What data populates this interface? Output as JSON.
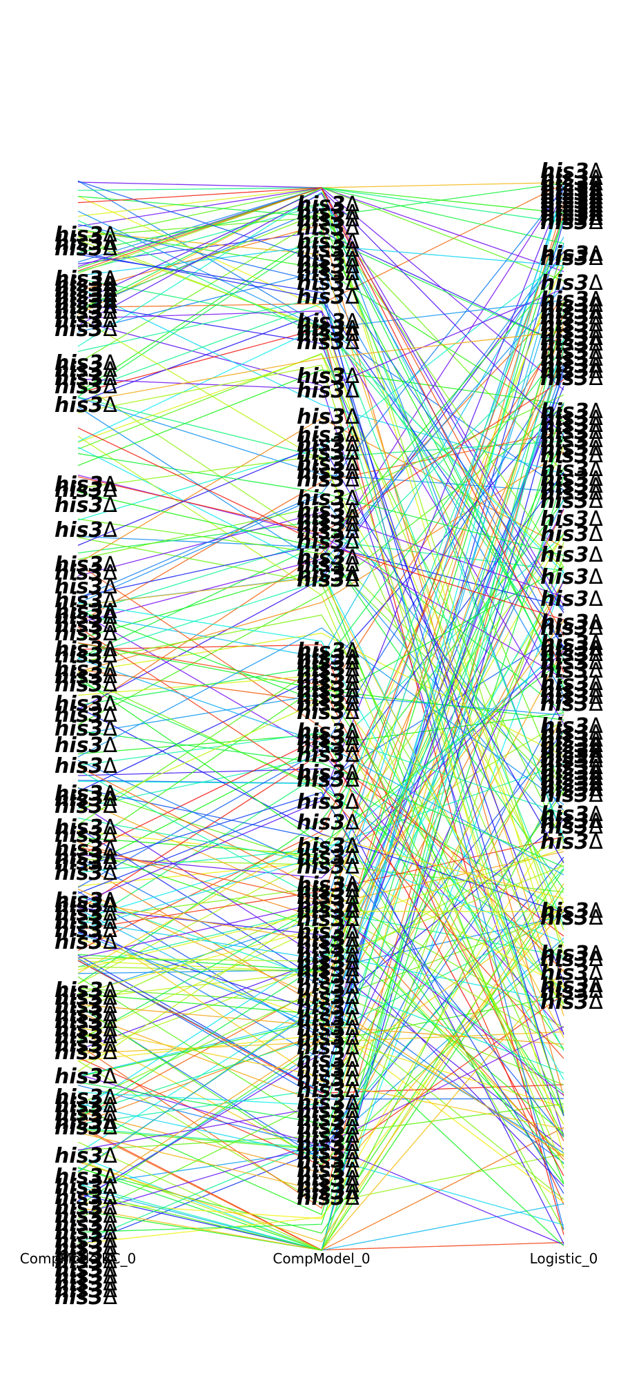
{
  "chart_data": {
    "type": "parallel-coordinates",
    "columns": [
      "CompModelBC_0",
      "CompModel_0",
      "Logistic_0"
    ],
    "label_text": "his3Δ",
    "label_gene": "his3",
    "label_suffix": "Δ",
    "colormap": "rainbow",
    "grid": false,
    "labels_compmodelbc": [
      350,
      362,
      370,
      414,
      422,
      430,
      438,
      446,
      454,
      462,
      474,
      487,
      536,
      546,
      558,
      570,
      597,
      712,
      720,
      742,
      778,
      828,
      840,
      860,
      880,
      896,
      904,
      916,
      928,
      951,
      960,
      980,
      990,
      1002,
      1030,
      1046,
      1066,
      1090,
      1120,
      1160,
      1168,
      1178,
      1209,
      1220,
      1240,
      1252,
      1260,
      1275,
      1315,
      1322,
      1334,
      1346,
      1358,
      1375,
      1445,
      1456,
      1468,
      1480,
      1490,
      1502,
      1512,
      1524,
      1535,
      1570,
      1600,
      1612,
      1624,
      1636,
      1644,
      1685,
      1715,
      1730,
      1745,
      1760,
      1772,
      1784,
      1796,
      1808,
      1818,
      1828,
      1838,
      1850,
      1860,
      1870,
      1880,
      1890
    ],
    "labels_compmodel": [
      306,
      318,
      328,
      340,
      360,
      372,
      386,
      396,
      406,
      420,
      440,
      476,
      486,
      494,
      506,
      555,
      576,
      614,
      640,
      654,
      666,
      682,
      694,
      705,
      732,
      750,
      760,
      770,
      780,
      795,
      818,
      828,
      842,
      850,
      953,
      963,
      970,
      980,
      990,
      1000,
      1010,
      1020,
      1030,
      1042,
      1070,
      1080,
      1090,
      1104,
      1130,
      1140,
      1172,
      1202,
      1236,
      1252,
      1266,
      1292,
      1300,
      1310,
      1322,
      1330,
      1342,
      1360,
      1372,
      1382,
      1395,
      1405,
      1415,
      1425,
      1440,
      1455,
      1470,
      1486,
      1500,
      1514,
      1528,
      1546,
      1560,
      1574,
      1590,
      1608,
      1620,
      1632,
      1644,
      1656,
      1668,
      1680,
      1692,
      1706,
      1718,
      1728,
      1738,
      1746
    ],
    "labels_logistic": [
      258,
      268,
      276,
      284,
      290,
      296,
      302,
      308,
      314,
      320,
      326,
      332,
      378,
      384,
      420,
      444,
      452,
      462,
      470,
      480,
      490,
      500,
      508,
      520,
      530,
      540,
      548,
      558,
      606,
      616,
      626,
      636,
      648,
      660,
      670,
      690,
      704,
      714,
      724,
      736,
      762,
      784,
      814,
      846,
      878,
      912,
      920,
      942,
      950,
      958,
      970,
      982,
      1000,
      1010,
      1020,
      1030,
      1062,
      1072,
      1082,
      1090,
      1098,
      1106,
      1112,
      1122,
      1130,
      1138,
      1146,
      1154,
      1162,
      1190,
      1200,
      1208,
      1230,
      1330,
      1340,
      1392,
      1400,
      1420,
      1438,
      1446,
      1462
    ]
  }
}
